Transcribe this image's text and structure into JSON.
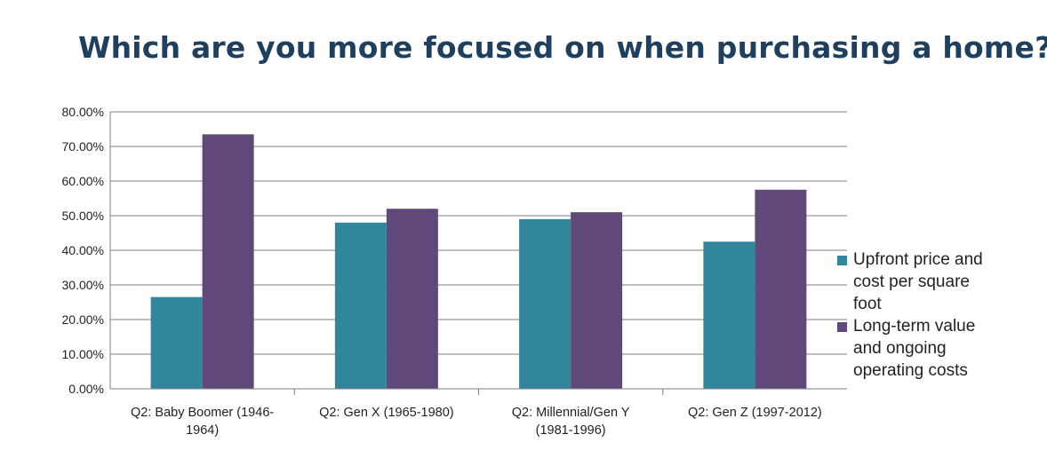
{
  "title": "Which are you more focused on when purchasing a home?",
  "chart_data": {
    "type": "bar",
    "title": "",
    "xlabel": "",
    "ylabel": "",
    "ylim": [
      0,
      80
    ],
    "yticks": [
      "0.00%",
      "10.00%",
      "20.00%",
      "30.00%",
      "40.00%",
      "50.00%",
      "60.00%",
      "70.00%",
      "80.00%"
    ],
    "ytick_values": [
      0,
      10,
      20,
      30,
      40,
      50,
      60,
      70,
      80
    ],
    "categories": [
      [
        "Q2: Baby Boomer (1946-",
        "1964)"
      ],
      [
        "Q2: Gen X (1965-1980)"
      ],
      [
        "Q2: Millennial/Gen Y",
        "(1981-1996)"
      ],
      [
        "Q2: Gen Z (1997-2012)"
      ]
    ],
    "series": [
      {
        "name": [
          "Upfront price and",
          "cost per square",
          "foot"
        ],
        "color": "#31869b",
        "values": [
          26.5,
          48.0,
          49.0,
          42.5
        ]
      },
      {
        "name": [
          "Long-term value",
          "and ongoing",
          "operating costs"
        ],
        "color": "#60497a",
        "values": [
          73.5,
          52.0,
          51.0,
          57.5
        ]
      }
    ],
    "grid": true,
    "legend": "right"
  }
}
